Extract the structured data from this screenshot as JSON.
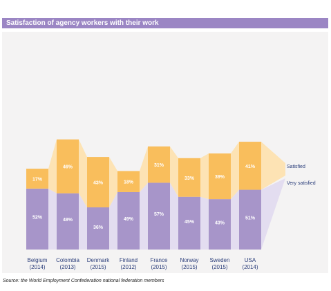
{
  "title": "Satisfaction of agency workers with their work",
  "source": "Source: the World Employment Confederation national federation members",
  "colors": {
    "title_bar": "#9b86c4",
    "very_satisfied": "#a795c9",
    "satisfied": "#f9be5c",
    "very_satisfied_band": "#e3ddf0",
    "satisfied_band": "#fde3b4",
    "label_text": "#ffffff",
    "axis_text": "#2a3d7a",
    "legend_text": "#2a3d7a"
  },
  "chart_data": {
    "type": "bar",
    "stacked": true,
    "title": "Satisfaction of agency workers with their work",
    "categories": [
      [
        "Belgium",
        "(2014)"
      ],
      [
        "Colombia",
        "(2013)"
      ],
      [
        "Denmark",
        "(2015)"
      ],
      [
        "Finland",
        "(2012)"
      ],
      [
        "France",
        "(2015)"
      ],
      [
        "Norway",
        "(2015)"
      ],
      [
        "Sweden",
        "(2015)"
      ],
      [
        "USA",
        "(2014)"
      ]
    ],
    "series": [
      {
        "name": "Very satisfied",
        "values": [
          52,
          48,
          36,
          49,
          57,
          45,
          43,
          51
        ],
        "labels": [
          "52%",
          "48%",
          "36%",
          "49%",
          "57%",
          "45%",
          "43%",
          "51%"
        ]
      },
      {
        "name": "Satisfied",
        "values": [
          17,
          46,
          43,
          18,
          31,
          33,
          39,
          41
        ],
        "labels": [
          "17%",
          "46%",
          "43%",
          "18%",
          "31%",
          "33%",
          "39%",
          "41%"
        ]
      }
    ],
    "legend": [
      "Satisfied",
      "Very satisfied"
    ],
    "legend_position": "right",
    "grid": false
  }
}
